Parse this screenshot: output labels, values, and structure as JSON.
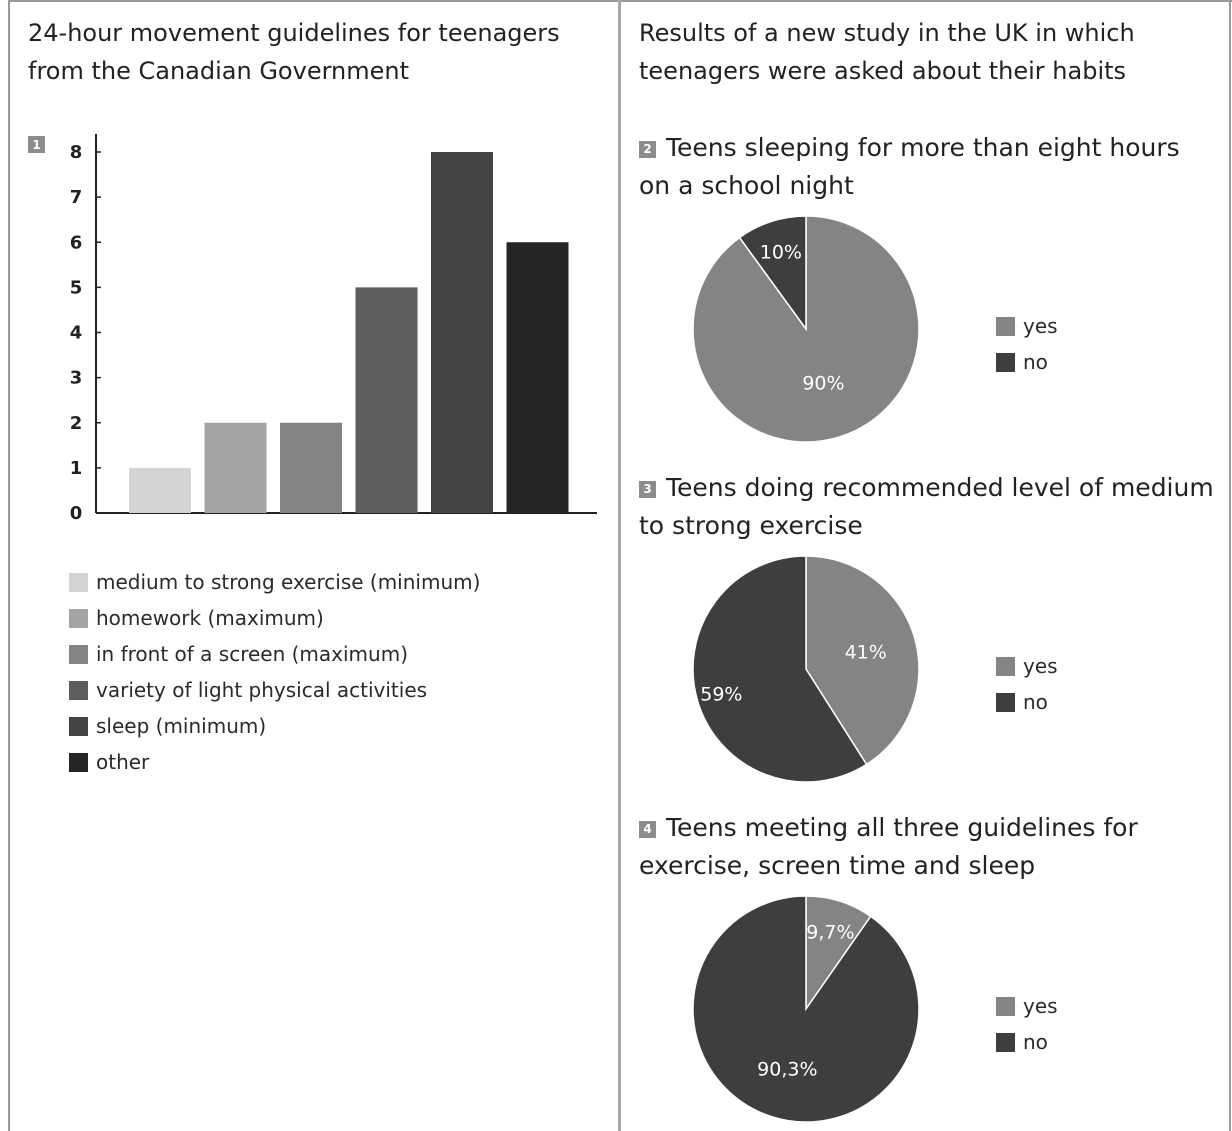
{
  "left_panel": {
    "title_line1": "24-hour movement guidelines for teenagers",
    "title_line2": "from the Canadian Government",
    "badge": "1"
  },
  "right_panel": {
    "title_line1": "Results of a new study in the UK in which",
    "title_line2": "teenagers were asked about their habits"
  },
  "colors": {
    "yes": "#848484",
    "no": "#3e3e3e",
    "border": "#9a9a9a"
  },
  "chart_data": [
    {
      "type": "bar",
      "badge": "1",
      "categories": [
        "medium to strong exercise (minimum)",
        "homework (maximum)",
        "in front of a screen (maximum)",
        "variety of light physical activities",
        "sleep (minimum)",
        "other"
      ],
      "values": [
        1,
        2,
        2,
        5,
        8,
        6
      ],
      "colors": [
        "#d4d4d4",
        "#a4a4a4",
        "#848484",
        "#5e5e5e",
        "#444444",
        "#252525"
      ],
      "yticks": [
        0,
        1,
        2,
        3,
        4,
        5,
        6,
        7,
        8
      ],
      "ylim": [
        0,
        8
      ],
      "legend": "below"
    },
    {
      "type": "pie",
      "badge": "2",
      "title_line1": "Teens sleeping for more than eight hours",
      "title_line2": "on a school night",
      "slices": [
        {
          "label": "yes",
          "value": 90,
          "text": "90%"
        },
        {
          "label": "no",
          "value": 10,
          "text": "10%"
        }
      ],
      "legend": [
        "yes",
        "no"
      ]
    },
    {
      "type": "pie",
      "badge": "3",
      "title_line1": "Teens doing recommended level of medium",
      "title_line2": "to strong exercise",
      "slices": [
        {
          "label": "yes",
          "value": 41,
          "text": "41%"
        },
        {
          "label": "no",
          "value": 59,
          "text": "59%"
        }
      ],
      "legend": [
        "yes",
        "no"
      ]
    },
    {
      "type": "pie",
      "badge": "4",
      "title_line1": "Teens meeting all three guidelines for",
      "title_line2": "exercise, screen time and sleep",
      "slices": [
        {
          "label": "yes",
          "value": 9.7,
          "text": "9,7%"
        },
        {
          "label": "no",
          "value": 90.3,
          "text": "90,3%"
        }
      ],
      "legend": [
        "yes",
        "no"
      ]
    }
  ]
}
